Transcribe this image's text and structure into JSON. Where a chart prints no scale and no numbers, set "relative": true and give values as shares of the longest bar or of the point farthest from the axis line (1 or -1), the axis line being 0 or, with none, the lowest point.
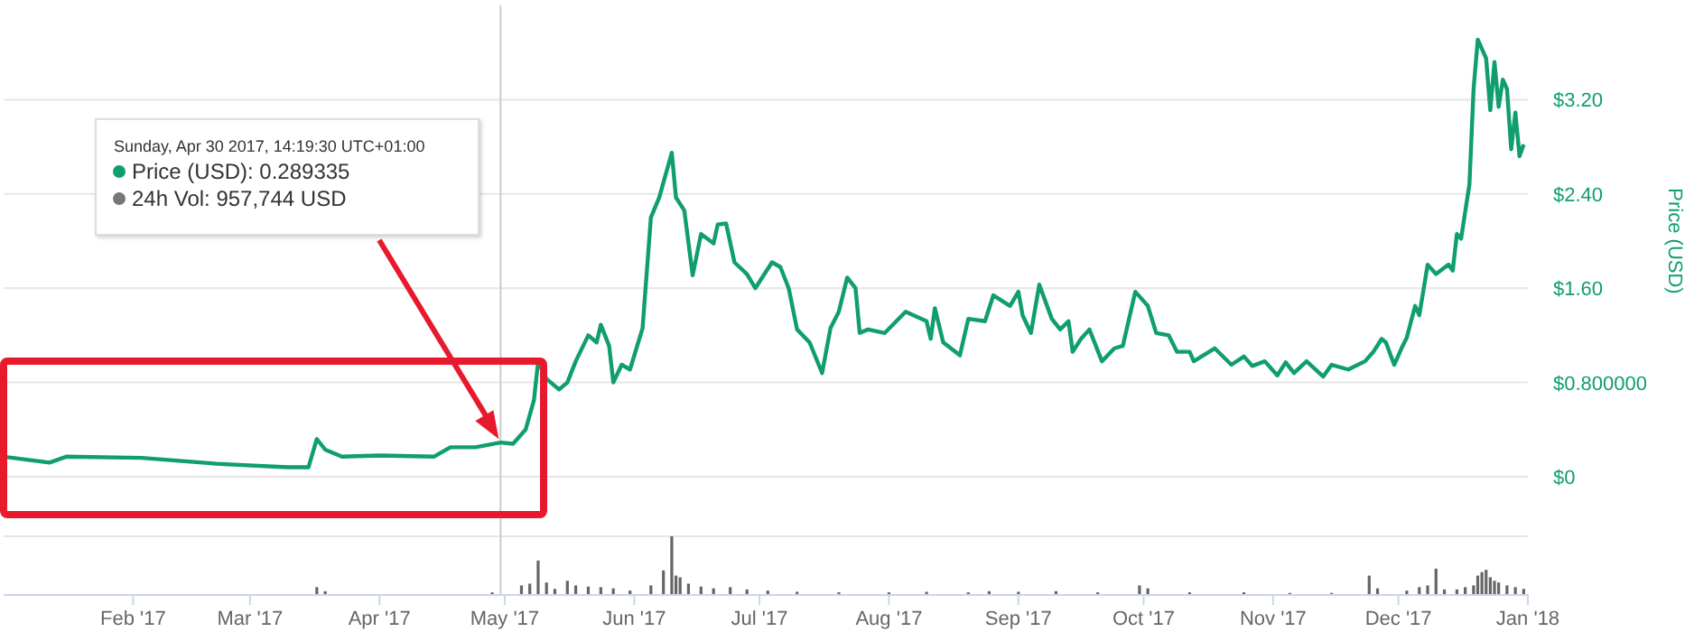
{
  "chart_data": [
    {
      "type": "line",
      "ylabel": "Price (USD)",
      "xlim": [
        "2017-01-01",
        "2018-01-01"
      ],
      "ylim": [
        0,
        4
      ],
      "yticks": [
        {
          "value": 0,
          "label": "$0"
        },
        {
          "value": 0.8,
          "label": "$0.800000"
        },
        {
          "value": 1.6,
          "label": "$1.60"
        },
        {
          "value": 2.4,
          "label": "$2.40"
        },
        {
          "value": 3.2,
          "label": "$3.20"
        }
      ],
      "grid": "y",
      "tick_labels": "y",
      "marker": "none",
      "line_style": "solid",
      "ref_lines": [
        {
          "axis": "x",
          "value": "2017-04-30",
          "color": "#cccccc"
        }
      ],
      "annotations": [
        "Sunday, Apr 30 2017, 14:19:30 UTC+01:00\nPrice (USD): 0.289335\n24h Vol: 957,744 USD"
      ],
      "x": [
        "2017-01-01",
        "2017-01-12",
        "2017-01-16",
        "2017-02-03",
        "2017-02-21",
        "2017-03-10",
        "2017-03-15",
        "2017-03-17",
        "2017-03-19",
        "2017-03-23",
        "2017-04-01",
        "2017-04-14",
        "2017-04-18",
        "2017-04-24",
        "2017-04-30",
        "2017-05-03",
        "2017-05-06",
        "2017-05-08",
        "2017-05-09",
        "2017-05-11",
        "2017-05-14",
        "2017-05-16",
        "2017-05-18",
        "2017-05-21",
        "2017-05-23",
        "2017-05-24",
        "2017-05-26",
        "2017-05-27",
        "2017-05-29",
        "2017-05-31",
        "2017-06-03",
        "2017-06-05",
        "2017-06-07",
        "2017-06-10",
        "2017-06-11",
        "2017-06-13",
        "2017-06-15",
        "2017-06-17",
        "2017-06-20",
        "2017-06-21",
        "2017-06-23",
        "2017-06-25",
        "2017-06-28",
        "2017-06-30",
        "2017-07-04",
        "2017-07-06",
        "2017-07-08",
        "2017-07-10",
        "2017-07-13",
        "2017-07-16",
        "2017-07-18",
        "2017-07-20",
        "2017-07-22",
        "2017-07-24",
        "2017-07-25",
        "2017-07-27",
        "2017-07-31",
        "2017-08-05",
        "2017-08-10",
        "2017-08-11",
        "2017-08-12",
        "2017-08-14",
        "2017-08-18",
        "2017-08-20",
        "2017-08-24",
        "2017-08-26",
        "2017-08-30",
        "2017-09-01",
        "2017-09-02",
        "2017-09-04",
        "2017-09-06",
        "2017-09-09",
        "2017-09-11",
        "2017-09-13",
        "2017-09-14",
        "2017-09-16",
        "2017-09-18",
        "2017-09-21",
        "2017-09-24",
        "2017-09-26",
        "2017-09-29",
        "2017-10-02",
        "2017-10-04",
        "2017-10-07",
        "2017-10-09",
        "2017-10-12",
        "2017-10-13",
        "2017-10-18",
        "2017-10-22",
        "2017-10-25",
        "2017-10-27",
        "2017-10-30",
        "2017-11-02",
        "2017-11-04",
        "2017-11-06",
        "2017-11-09",
        "2017-11-13",
        "2017-11-15",
        "2017-11-19",
        "2017-11-23",
        "2017-11-25",
        "2017-11-27",
        "2017-11-28",
        "2017-11-30",
        "2017-12-02",
        "2017-12-03",
        "2017-12-05",
        "2017-12-06",
        "2017-12-08",
        "2017-12-10",
        "2017-12-13",
        "2017-12-14",
        "2017-12-15",
        "2017-12-16",
        "2017-12-18",
        "2017-12-19",
        "2017-12-20",
        "2017-12-22",
        "2017-12-23",
        "2017-12-24",
        "2017-12-25",
        "2017-12-26",
        "2017-12-27",
        "2017-12-28",
        "2017-12-29",
        "2017-12-30",
        "2017-12-31"
      ],
      "series": [
        {
          "color": "#109e6f",
          "values": [
            0.17,
            0.12,
            0.17,
            0.16,
            0.11,
            0.08,
            0.08,
            0.32,
            0.23,
            0.17,
            0.18,
            0.17,
            0.25,
            0.25,
            0.29,
            0.28,
            0.4,
            0.65,
            0.98,
            0.83,
            0.74,
            0.8,
            0.98,
            1.2,
            1.14,
            1.29,
            1.11,
            0.8,
            0.95,
            0.91,
            1.26,
            2.2,
            2.37,
            2.75,
            2.37,
            2.26,
            1.71,
            2.06,
            1.98,
            2.14,
            2.15,
            1.82,
            1.72,
            1.6,
            1.82,
            1.78,
            1.6,
            1.25,
            1.14,
            0.88,
            1.26,
            1.4,
            1.69,
            1.6,
            1.22,
            1.25,
            1.22,
            1.4,
            1.32,
            1.17,
            1.43,
            1.14,
            1.03,
            1.34,
            1.32,
            1.54,
            1.45,
            1.57,
            1.37,
            1.22,
            1.63,
            1.34,
            1.25,
            1.32,
            1.06,
            1.17,
            1.25,
            0.98,
            1.09,
            1.11,
            1.57,
            1.45,
            1.22,
            1.2,
            1.06,
            1.06,
            0.98,
            1.09,
            0.95,
            1.02,
            0.94,
            0.98,
            0.86,
            0.97,
            0.88,
            0.98,
            0.85,
            0.95,
            0.91,
            0.98,
            1.06,
            1.17,
            1.14,
            0.95,
            1.11,
            1.18,
            1.45,
            1.37,
            1.8,
            1.72,
            1.8,
            1.75,
            2.06,
            2.02,
            2.48,
            3.29,
            3.71,
            3.55,
            3.11,
            3.52,
            3.14,
            3.37,
            3.29,
            2.78,
            3.09,
            2.72,
            2.82
          ]
        }
      ]
    },
    {
      "type": "bar",
      "relative": true,
      "xlim": [
        "2017-01-01",
        "2018-01-01"
      ],
      "xticks": [
        {
          "value": "2017-02-01",
          "label": "Feb '17"
        },
        {
          "value": "2017-03-01",
          "label": "Mar '17"
        },
        {
          "value": "2017-04-01",
          "label": "Apr '17"
        },
        {
          "value": "2017-05-01",
          "label": "May '17"
        },
        {
          "value": "2017-06-01",
          "label": "Jun '17"
        },
        {
          "value": "2017-07-01",
          "label": "Jul '17"
        },
        {
          "value": "2017-08-01",
          "label": "Aug '17"
        },
        {
          "value": "2017-09-01",
          "label": "Sep '17"
        },
        {
          "value": "2017-10-01",
          "label": "Oct '17"
        },
        {
          "value": "2017-11-01",
          "label": "Nov '17"
        },
        {
          "value": "2017-12-01",
          "label": "Dec '17"
        },
        {
          "value": "2018-01-01",
          "label": "Jan '18"
        }
      ],
      "tick_labels": "x",
      "x": [
        "2017-03-17",
        "2017-03-19",
        "2017-04-28",
        "2017-05-05",
        "2017-05-07",
        "2017-05-09",
        "2017-05-11",
        "2017-05-13",
        "2017-05-16",
        "2017-05-18",
        "2017-05-21",
        "2017-05-24",
        "2017-05-27",
        "2017-05-31",
        "2017-06-05",
        "2017-06-08",
        "2017-06-10",
        "2017-06-11",
        "2017-06-12",
        "2017-06-14",
        "2017-06-17",
        "2017-06-20",
        "2017-06-24",
        "2017-06-28",
        "2017-07-03",
        "2017-07-10",
        "2017-07-20",
        "2017-08-01",
        "2017-08-10",
        "2017-08-20",
        "2017-08-25",
        "2017-09-01",
        "2017-09-10",
        "2017-09-20",
        "2017-09-30",
        "2017-10-02",
        "2017-10-12",
        "2017-10-25",
        "2017-11-05",
        "2017-11-15",
        "2017-11-24",
        "2017-11-26",
        "2017-12-03",
        "2017-12-06",
        "2017-12-08",
        "2017-12-10",
        "2017-12-12",
        "2017-12-15",
        "2017-12-17",
        "2017-12-19",
        "2017-12-20",
        "2017-12-21",
        "2017-12-22",
        "2017-12-23",
        "2017-12-24",
        "2017-12-25",
        "2017-12-27",
        "2017-12-29",
        "2017-12-31"
      ],
      "series": [
        {
          "color": "#666666",
          "values": [
            0.12,
            0.05,
            0.03,
            0.15,
            0.18,
            0.58,
            0.2,
            0.09,
            0.23,
            0.15,
            0.13,
            0.12,
            0.1,
            0.06,
            0.15,
            0.41,
            1.0,
            0.32,
            0.29,
            0.18,
            0.13,
            0.1,
            0.12,
            0.08,
            0.06,
            0.04,
            0.03,
            0.03,
            0.04,
            0.03,
            0.05,
            0.04,
            0.05,
            0.03,
            0.15,
            0.1,
            0.03,
            0.03,
            0.02,
            0.02,
            0.32,
            0.1,
            0.06,
            0.12,
            0.15,
            0.44,
            0.08,
            0.08,
            0.12,
            0.15,
            0.32,
            0.38,
            0.42,
            0.29,
            0.23,
            0.2,
            0.15,
            0.12,
            0.09
          ]
        }
      ]
    }
  ]
}
